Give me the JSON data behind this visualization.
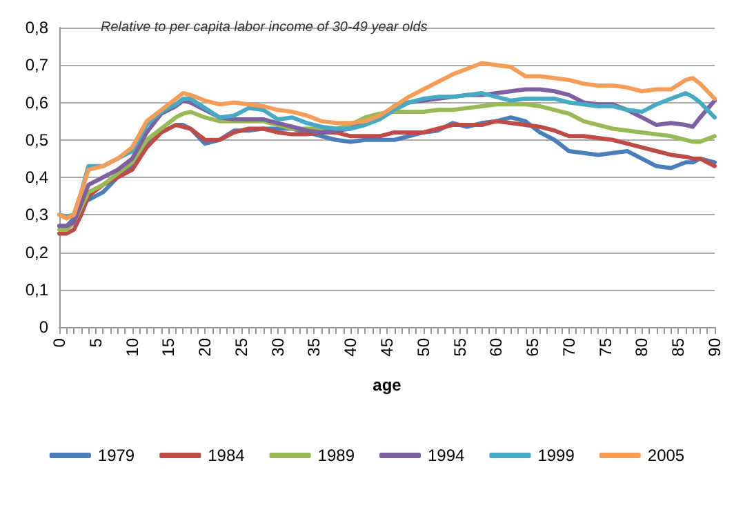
{
  "chart_data": {
    "type": "line",
    "title": "Relative to per capita labor income of 30-49 year olds",
    "xlabel": "age",
    "x": [
      0,
      1,
      2,
      3,
      4,
      6,
      8,
      10,
      12,
      14,
      16,
      17,
      18,
      20,
      22,
      24,
      26,
      28,
      30,
      32,
      34,
      36,
      38,
      40,
      42,
      44,
      46,
      48,
      50,
      52,
      54,
      56,
      58,
      60,
      62,
      64,
      66,
      68,
      70,
      72,
      74,
      76,
      78,
      80,
      82,
      84,
      86,
      87,
      88,
      90
    ],
    "series": [
      {
        "name": "1979",
        "color": "#4a7ebb",
        "values": [
          0.27,
          0.27,
          0.29,
          0.33,
          0.34,
          0.36,
          0.4,
          0.43,
          0.49,
          0.52,
          0.54,
          0.54,
          0.53,
          0.49,
          0.5,
          0.525,
          0.525,
          0.53,
          0.53,
          0.53,
          0.52,
          0.51,
          0.5,
          0.495,
          0.5,
          0.5,
          0.5,
          0.51,
          0.52,
          0.525,
          0.545,
          0.535,
          0.545,
          0.55,
          0.56,
          0.55,
          0.52,
          0.5,
          0.47,
          0.465,
          0.46,
          0.465,
          0.47,
          0.45,
          0.43,
          0.425,
          0.44,
          0.44,
          0.45,
          0.44
        ]
      },
      {
        "name": "1984",
        "color": "#be4b48",
        "values": [
          0.25,
          0.25,
          0.26,
          0.3,
          0.35,
          0.38,
          0.4,
          0.42,
          0.48,
          0.52,
          0.54,
          0.535,
          0.53,
          0.5,
          0.5,
          0.52,
          0.53,
          0.53,
          0.52,
          0.515,
          0.515,
          0.52,
          0.52,
          0.51,
          0.51,
          0.51,
          0.52,
          0.52,
          0.52,
          0.53,
          0.54,
          0.54,
          0.54,
          0.55,
          0.545,
          0.54,
          0.535,
          0.525,
          0.51,
          0.51,
          0.505,
          0.5,
          0.49,
          0.48,
          0.47,
          0.46,
          0.455,
          0.45,
          0.45,
          0.43
        ]
      },
      {
        "name": "1989",
        "color": "#98b954",
        "values": [
          0.26,
          0.26,
          0.28,
          0.32,
          0.36,
          0.38,
          0.41,
          0.44,
          0.5,
          0.53,
          0.56,
          0.57,
          0.575,
          0.56,
          0.55,
          0.55,
          0.55,
          0.55,
          0.54,
          0.53,
          0.53,
          0.53,
          0.53,
          0.54,
          0.56,
          0.57,
          0.575,
          0.575,
          0.575,
          0.58,
          0.58,
          0.585,
          0.59,
          0.595,
          0.595,
          0.595,
          0.59,
          0.58,
          0.57,
          0.55,
          0.54,
          0.53,
          0.525,
          0.52,
          0.515,
          0.51,
          0.5,
          0.495,
          0.495,
          0.51
        ]
      },
      {
        "name": "1994",
        "color": "#7d60a0",
        "values": [
          0.27,
          0.27,
          0.28,
          0.33,
          0.38,
          0.4,
          0.42,
          0.45,
          0.52,
          0.57,
          0.59,
          0.605,
          0.6,
          0.58,
          0.56,
          0.555,
          0.555,
          0.555,
          0.545,
          0.535,
          0.525,
          0.52,
          0.525,
          0.53,
          0.545,
          0.56,
          0.59,
          0.6,
          0.605,
          0.61,
          0.615,
          0.62,
          0.62,
          0.625,
          0.63,
          0.635,
          0.635,
          0.63,
          0.62,
          0.6,
          0.595,
          0.595,
          0.58,
          0.56,
          0.54,
          0.545,
          0.54,
          0.535,
          0.56,
          0.605
        ]
      },
      {
        "name": "1999",
        "color": "#46aac5",
        "values": [
          0.3,
          0.295,
          0.3,
          0.36,
          0.43,
          0.43,
          0.45,
          0.47,
          0.54,
          0.575,
          0.595,
          0.61,
          0.61,
          0.585,
          0.56,
          0.565,
          0.585,
          0.58,
          0.555,
          0.56,
          0.545,
          0.535,
          0.53,
          0.53,
          0.54,
          0.555,
          0.58,
          0.6,
          0.61,
          0.615,
          0.615,
          0.62,
          0.625,
          0.615,
          0.605,
          0.61,
          0.61,
          0.61,
          0.6,
          0.595,
          0.59,
          0.59,
          0.58,
          0.575,
          0.595,
          0.61,
          0.625,
          0.615,
          0.6,
          0.56
        ]
      },
      {
        "name": "2005",
        "color": "#f59d56",
        "values": [
          0.3,
          0.29,
          0.3,
          0.36,
          0.42,
          0.43,
          0.45,
          0.48,
          0.55,
          0.58,
          0.61,
          0.625,
          0.62,
          0.605,
          0.595,
          0.6,
          0.595,
          0.59,
          0.58,
          0.575,
          0.565,
          0.55,
          0.545,
          0.545,
          0.55,
          0.565,
          0.59,
          0.615,
          0.635,
          0.655,
          0.675,
          0.69,
          0.705,
          0.7,
          0.695,
          0.67,
          0.67,
          0.665,
          0.66,
          0.65,
          0.645,
          0.645,
          0.64,
          0.63,
          0.635,
          0.635,
          0.66,
          0.665,
          0.65,
          0.61
        ]
      }
    ],
    "xlim": [
      0,
      90
    ],
    "xticks": [
      0,
      5,
      10,
      15,
      20,
      25,
      30,
      35,
      40,
      45,
      50,
      55,
      60,
      65,
      70,
      75,
      80,
      85,
      90
    ],
    "ylim": [
      0,
      0.8
    ],
    "yticks": [
      {
        "value": 0,
        "label": "0"
      },
      {
        "value": 0.1,
        "label": "0,1"
      },
      {
        "value": 0.2,
        "label": "0,2"
      },
      {
        "value": 0.3,
        "label": "0,3"
      },
      {
        "value": 0.4,
        "label": "0,4"
      },
      {
        "value": 0.5,
        "label": "0,5"
      },
      {
        "value": 0.6,
        "label": "0,6"
      },
      {
        "value": 0.7,
        "label": "0,7"
      },
      {
        "value": 0.8,
        "label": "0,8"
      }
    ],
    "grid": "y",
    "legend": "bottom",
    "marker": "none",
    "line_style": "solid"
  }
}
